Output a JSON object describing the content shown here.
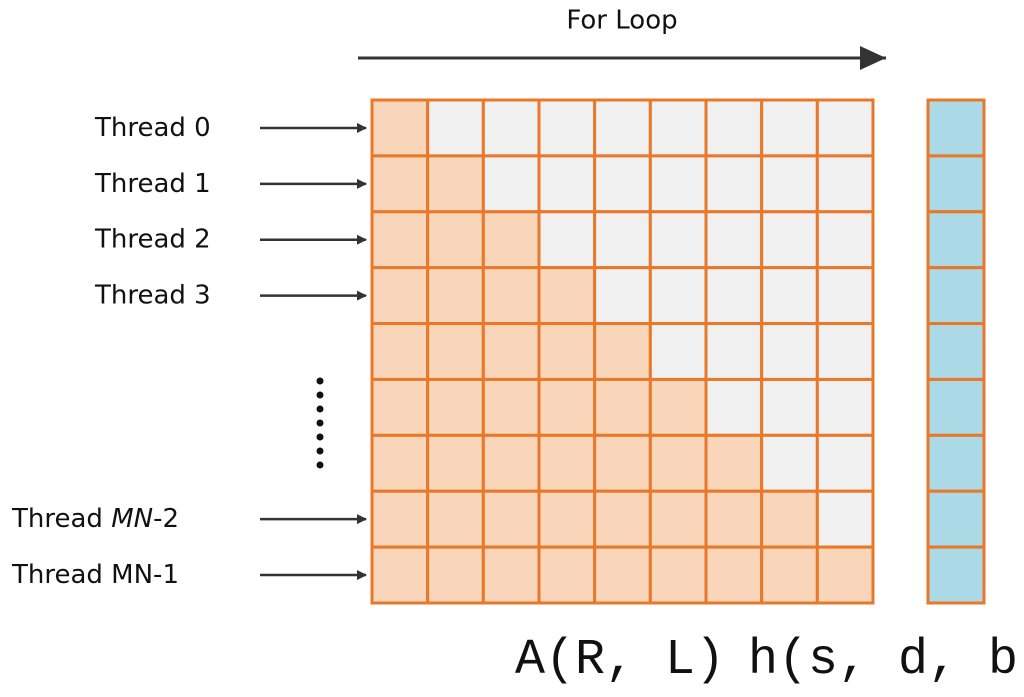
{
  "header": {
    "title": "For Loop"
  },
  "threads": [
    {
      "parts": [
        "Thread 0"
      ]
    },
    {
      "parts": [
        "Thread 1"
      ]
    },
    {
      "parts": [
        "Thread 2"
      ]
    },
    {
      "parts": [
        "Thread 3"
      ]
    },
    {
      "parts": [
        "Thread ",
        "MN",
        "-2"
      ]
    },
    {
      "parts": [
        "Thread MN-1"
      ]
    }
  ],
  "matrix": {
    "label": "A(R, L)"
  },
  "vector": {
    "label": "h(s, d, b)"
  }
}
